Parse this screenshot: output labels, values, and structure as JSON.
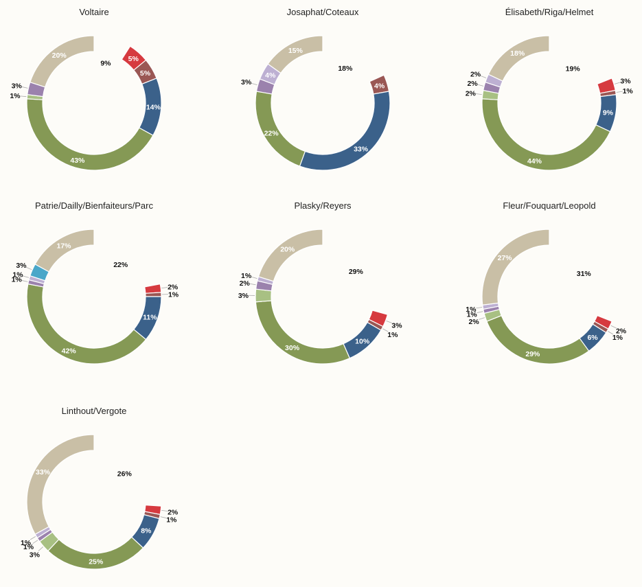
{
  "chart_data": {
    "type": "pie",
    "variant": "donut",
    "legend": "none",
    "segment_colors": {
      "unlabeled-gap": "#fdfcf8",
      "red": "#d63a3f",
      "brown": "#9a5754",
      "blue": "#3b618a",
      "green": "#859955",
      "light-green": "#a8c083",
      "violet": "#9b82ad",
      "lavender": "#bdb0d2",
      "cyan": "#4aa7c9",
      "beige": "#c9bfa6"
    },
    "charts": [
      {
        "title": "Voltaire",
        "slices": [
          {
            "key": "gap",
            "value": 9,
            "label": "9%"
          },
          {
            "key": "red",
            "value": 5,
            "label": "5%"
          },
          {
            "key": "brown",
            "value": 5,
            "label": "5%"
          },
          {
            "key": "blue",
            "value": 14,
            "label": "14%"
          },
          {
            "key": "green",
            "value": 43,
            "label": "43%"
          },
          {
            "key": "light-green",
            "value": 1,
            "label": "1%"
          },
          {
            "key": "violet",
            "value": 3,
            "label": "3%"
          },
          {
            "key": "beige",
            "value": 20,
            "label": "20%"
          }
        ]
      },
      {
        "title": "Josaphat/Coteaux",
        "slices": [
          {
            "key": "gap",
            "value": 18,
            "label": "18%"
          },
          {
            "key": "brown",
            "value": 4,
            "label": "4%"
          },
          {
            "key": "blue",
            "value": 33,
            "label": "33%"
          },
          {
            "key": "green",
            "value": 22,
            "label": "22%"
          },
          {
            "key": "violet",
            "value": 3,
            "label": "3%"
          },
          {
            "key": "lavender",
            "value": 4,
            "label": "4%"
          },
          {
            "key": "beige",
            "value": 15,
            "label": "15%"
          }
        ]
      },
      {
        "title": "Élisabeth/Riga/Helmet",
        "slices": [
          {
            "key": "gap",
            "value": 19,
            "label": "19%"
          },
          {
            "key": "red",
            "value": 3,
            "label": "3%"
          },
          {
            "key": "brown",
            "value": 1,
            "label": "1%"
          },
          {
            "key": "blue",
            "value": 9,
            "label": "9%"
          },
          {
            "key": "green",
            "value": 44,
            "label": "44%"
          },
          {
            "key": "light-green",
            "value": 2,
            "label": "2%"
          },
          {
            "key": "violet",
            "value": 2,
            "label": "2%"
          },
          {
            "key": "lavender",
            "value": 2,
            "label": "2%"
          },
          {
            "key": "beige",
            "value": 18,
            "label": "18%"
          }
        ]
      },
      {
        "title": "Patrie/Dailly/Bienfaiteurs/Parc",
        "slices": [
          {
            "key": "gap",
            "value": 22,
            "label": "22%"
          },
          {
            "key": "red",
            "value": 2,
            "label": "2%"
          },
          {
            "key": "brown",
            "value": 1,
            "label": "1%"
          },
          {
            "key": "blue",
            "value": 11,
            "label": "11%"
          },
          {
            "key": "green",
            "value": 42,
            "label": "42%"
          },
          {
            "key": "violet",
            "value": 1,
            "label": "1%"
          },
          {
            "key": "lavender",
            "value": 1,
            "label": "1%"
          },
          {
            "key": "cyan",
            "value": 3,
            "label": "3%"
          },
          {
            "key": "beige",
            "value": 17,
            "label": "17%"
          }
        ]
      },
      {
        "title": "Plasky/Reyers",
        "slices": [
          {
            "key": "gap",
            "value": 29,
            "label": "29%"
          },
          {
            "key": "red",
            "value": 3,
            "label": "3%"
          },
          {
            "key": "brown",
            "value": 1,
            "label": "1%"
          },
          {
            "key": "blue",
            "value": 10,
            "label": "10%"
          },
          {
            "key": "green",
            "value": 30,
            "label": "30%"
          },
          {
            "key": "light-green",
            "value": 3,
            "label": "3%"
          },
          {
            "key": "violet",
            "value": 2,
            "label": "2%"
          },
          {
            "key": "lavender",
            "value": 1,
            "label": "1%"
          },
          {
            "key": "beige",
            "value": 20,
            "label": "20%"
          }
        ]
      },
      {
        "title": "Fleur/Fouquart/Leopold",
        "slices": [
          {
            "key": "gap",
            "value": 31,
            "label": "31%"
          },
          {
            "key": "red",
            "value": 2,
            "label": "2%"
          },
          {
            "key": "brown",
            "value": 1,
            "label": "1%"
          },
          {
            "key": "blue",
            "value": 6,
            "label": "6%"
          },
          {
            "key": "green",
            "value": 29,
            "label": "29%"
          },
          {
            "key": "light-green",
            "value": 2,
            "label": "2%"
          },
          {
            "key": "violet",
            "value": 1,
            "label": "1%"
          },
          {
            "key": "lavender",
            "value": 1,
            "label": "1%"
          },
          {
            "key": "beige",
            "value": 27,
            "label": "27%"
          }
        ]
      },
      {
        "title": "Linthout/Vergote",
        "slices": [
          {
            "key": "gap",
            "value": 26,
            "label": "26%"
          },
          {
            "key": "red",
            "value": 2,
            "label": "2%"
          },
          {
            "key": "brown",
            "value": 1,
            "label": "1%"
          },
          {
            "key": "blue",
            "value": 8,
            "label": "8%"
          },
          {
            "key": "green",
            "value": 25,
            "label": "25%"
          },
          {
            "key": "light-green",
            "value": 3,
            "label": "3%"
          },
          {
            "key": "violet",
            "value": 1,
            "label": "1%"
          },
          {
            "key": "lavender",
            "value": 1,
            "label": "1%"
          },
          {
            "key": "beige",
            "value": 33,
            "label": "33%"
          }
        ]
      }
    ]
  }
}
